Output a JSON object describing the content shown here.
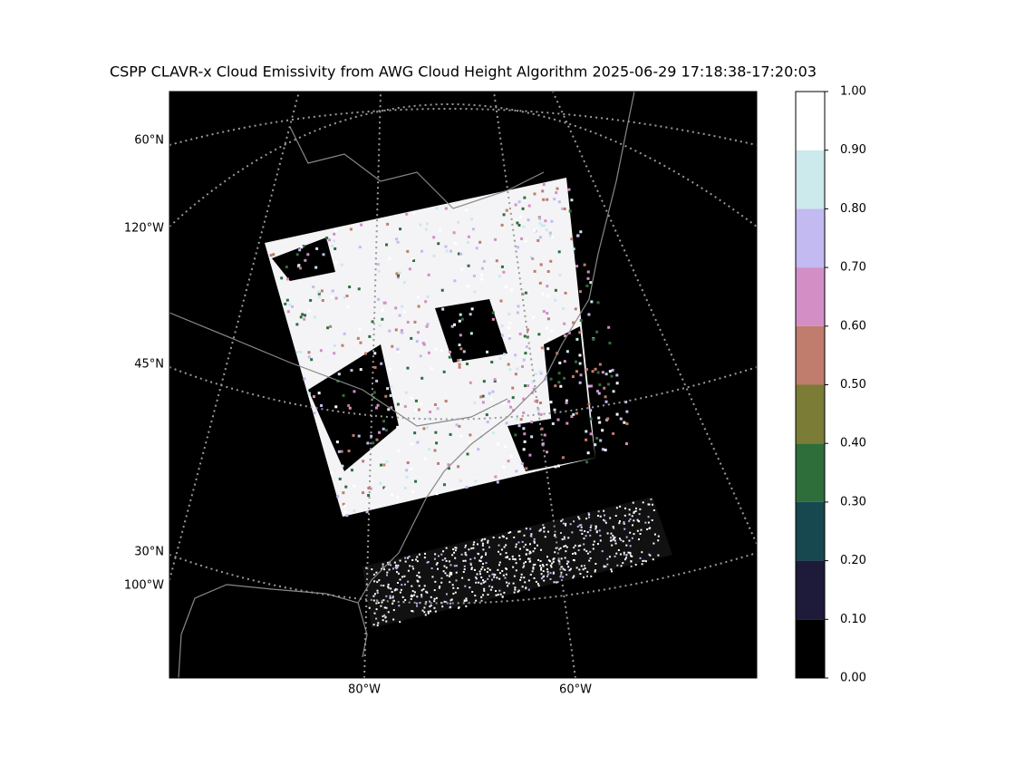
{
  "map": {
    "title": "CSPP CLAVR-x Cloud Emissivity from AWG Cloud Height Algorithm 2025-06-29 17:18:38-17:20:03",
    "lat_labels": [
      "60°N",
      "120°W",
      "45°N",
      "30°N",
      "100°W"
    ],
    "lon_labels": [
      "80°W",
      "60°W"
    ],
    "colorbar": {
      "ticks": [
        {
          "value": 0,
          "label": "0.00"
        },
        {
          "value": 0.1,
          "label": "0.10"
        },
        {
          "value": 0.2,
          "label": "0.20"
        },
        {
          "value": 0.3,
          "label": "0.30"
        },
        {
          "value": 0.4,
          "label": "0.40"
        },
        {
          "value": 0.5,
          "label": "0.50"
        },
        {
          "value": 0.6,
          "label": "0.60"
        },
        {
          "value": 0.7,
          "label": "0.70"
        },
        {
          "value": 0.8,
          "label": "0.80"
        },
        {
          "value": 0.9,
          "label": "0.90"
        },
        {
          "value": 1,
          "label": "1.00"
        }
      ],
      "colors": [
        "#000000",
        "#1e1a3a",
        "#17474f",
        "#2e6e3b",
        "#7b7c35",
        "#c07c6c",
        "#d38ec6",
        "#c3baf2",
        "#cce9ec",
        "#ffffff"
      ],
      "lim": [
        0,
        1
      ]
    }
  }
}
